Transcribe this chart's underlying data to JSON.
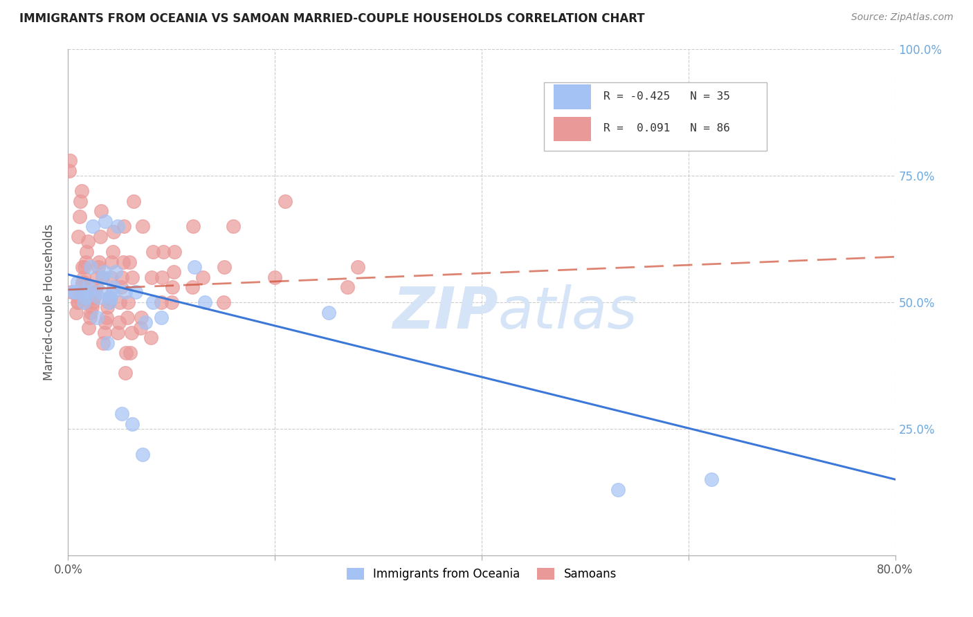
{
  "title": "IMMIGRANTS FROM OCEANIA VS SAMOAN MARRIED-COUPLE HOUSEHOLDS CORRELATION CHART",
  "source": "Source: ZipAtlas.com",
  "ylabel": "Married-couple Households",
  "legend_blue_label": "Immigrants from Oceania",
  "legend_pink_label": "Samoans",
  "blue_color": "#a4c2f4",
  "pink_color": "#ea9999",
  "blue_fill_color": "#a4c2f4",
  "pink_fill_color": "#ea9999",
  "blue_line_color": "#3c78d8",
  "pink_line_color": "#cc4125",
  "watermark_color": "#d6e4f7",
  "blue_points_x": [
    0.005,
    0.007,
    0.009,
    0.015,
    0.017,
    0.019,
    0.02,
    0.022,
    0.024,
    0.028,
    0.03,
    0.031,
    0.033,
    0.035,
    0.036,
    0.038,
    0.04,
    0.041,
    0.043,
    0.044,
    0.046,
    0.048,
    0.052,
    0.055,
    0.062,
    0.065,
    0.072,
    0.075,
    0.082,
    0.09,
    0.122,
    0.132,
    0.252,
    0.532,
    0.622
  ],
  "blue_points_y": [
    0.52,
    0.52,
    0.54,
    0.5,
    0.51,
    0.52,
    0.53,
    0.57,
    0.65,
    0.47,
    0.51,
    0.52,
    0.55,
    0.56,
    0.66,
    0.42,
    0.5,
    0.51,
    0.52,
    0.53,
    0.56,
    0.65,
    0.28,
    0.52,
    0.26,
    0.52,
    0.2,
    0.46,
    0.5,
    0.47,
    0.57,
    0.5,
    0.48,
    0.13,
    0.15
  ],
  "pink_points_x": [
    0.001,
    0.002,
    0.003,
    0.008,
    0.009,
    0.01,
    0.011,
    0.012,
    0.013,
    0.014,
    0.015,
    0.016,
    0.017,
    0.018,
    0.019,
    0.01,
    0.011,
    0.012,
    0.013,
    0.014,
    0.015,
    0.016,
    0.02,
    0.021,
    0.022,
    0.023,
    0.024,
    0.025,
    0.026,
    0.027,
    0.028,
    0.029,
    0.03,
    0.031,
    0.032,
    0.033,
    0.034,
    0.035,
    0.036,
    0.037,
    0.038,
    0.039,
    0.04,
    0.041,
    0.042,
    0.043,
    0.044,
    0.048,
    0.049,
    0.05,
    0.051,
    0.052,
    0.053,
    0.054,
    0.055,
    0.056,
    0.057,
    0.058,
    0.059,
    0.06,
    0.061,
    0.062,
    0.063,
    0.07,
    0.071,
    0.072,
    0.08,
    0.081,
    0.082,
    0.09,
    0.091,
    0.092,
    0.1,
    0.101,
    0.102,
    0.103,
    0.12,
    0.121,
    0.13,
    0.15,
    0.151,
    0.16,
    0.2,
    0.21,
    0.27,
    0.28
  ],
  "pink_points_y": [
    0.76,
    0.78,
    0.52,
    0.48,
    0.5,
    0.5,
    0.51,
    0.52,
    0.53,
    0.54,
    0.55,
    0.57,
    0.58,
    0.6,
    0.62,
    0.63,
    0.67,
    0.7,
    0.72,
    0.57,
    0.54,
    0.5,
    0.45,
    0.47,
    0.48,
    0.49,
    0.5,
    0.51,
    0.52,
    0.53,
    0.55,
    0.57,
    0.58,
    0.63,
    0.68,
    0.55,
    0.42,
    0.44,
    0.46,
    0.47,
    0.49,
    0.5,
    0.51,
    0.55,
    0.58,
    0.6,
    0.64,
    0.44,
    0.46,
    0.5,
    0.53,
    0.55,
    0.58,
    0.65,
    0.36,
    0.4,
    0.47,
    0.5,
    0.58,
    0.4,
    0.44,
    0.55,
    0.7,
    0.45,
    0.47,
    0.65,
    0.43,
    0.55,
    0.6,
    0.5,
    0.55,
    0.6,
    0.5,
    0.53,
    0.56,
    0.6,
    0.53,
    0.65,
    0.55,
    0.5,
    0.57,
    0.65,
    0.55,
    0.7,
    0.53,
    0.57
  ],
  "blue_line_x": [
    0.0,
    0.8
  ],
  "blue_line_y": [
    0.555,
    0.15
  ],
  "pink_line_x": [
    0.0,
    0.8
  ],
  "pink_line_y": [
    0.525,
    0.59
  ],
  "xlim": [
    0.0,
    0.8
  ],
  "ylim": [
    0.0,
    1.0
  ],
  "xtick_positions": [
    0.0,
    0.2,
    0.4,
    0.6,
    0.8
  ],
  "xtick_labels": [
    "0.0%",
    "",
    "",
    "",
    "80.0%"
  ],
  "ytick_positions": [
    0.25,
    0.5,
    0.75,
    1.0
  ],
  "ytick_labels": [
    "25.0%",
    "50.0%",
    "75.0%",
    "100.0%"
  ]
}
